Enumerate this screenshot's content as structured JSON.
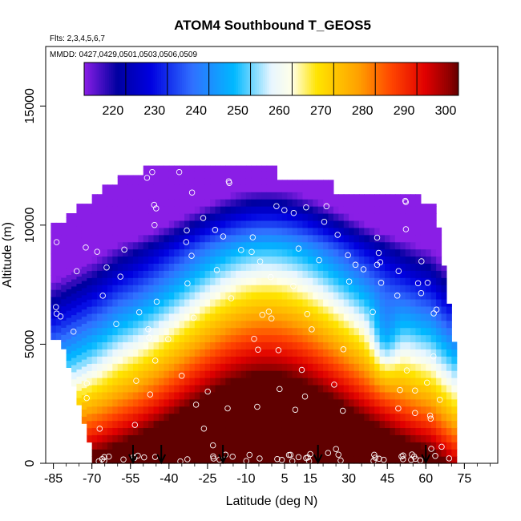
{
  "chart_data": {
    "type": "heatmap",
    "title": "ATOM4 Southbound T_GEOS5",
    "subtitle_flights": "Flts: 2,3,4,5,6,7",
    "subtitle_dates": "MMDD: 0427,0429,0501,0503,0506,0509",
    "xlabel": "Latitude (deg N)",
    "ylabel": "Altitude (m)",
    "xlim": [
      -88,
      88
    ],
    "ylim": [
      0,
      17500
    ],
    "xticks": [
      -85,
      -70,
      -55,
      -40,
      -25,
      -10,
      5,
      15,
      30,
      45,
      60,
      75
    ],
    "xtick_labels": [
      "-85",
      "-70",
      "-55",
      "-40",
      "-25",
      "-10",
      "5",
      "15",
      "30",
      "45",
      "60",
      "75"
    ],
    "yticks": [
      0,
      5000,
      10000,
      15000
    ],
    "ytick_labels": [
      "0",
      "5000",
      "10000",
      "15000"
    ],
    "colorbar": {
      "min": 210,
      "max": 300,
      "ticks": [
        220,
        230,
        240,
        250,
        260,
        270,
        280,
        290,
        300
      ],
      "tick_labels": [
        "220",
        "230",
        "240",
        "250",
        "260",
        "270",
        "280",
        "290",
        "300"
      ],
      "stops": [
        {
          "v": 210,
          "c": "#8a1ee6"
        },
        {
          "v": 218,
          "c": "#0000a0"
        },
        {
          "v": 226,
          "c": "#0000e0"
        },
        {
          "v": 236,
          "c": "#3070ff"
        },
        {
          "v": 246,
          "c": "#00b8ff"
        },
        {
          "v": 255,
          "c": "#e8f6ff"
        },
        {
          "v": 260,
          "c": "#ffffe8"
        },
        {
          "v": 266,
          "c": "#ffe400"
        },
        {
          "v": 276,
          "c": "#ffa000"
        },
        {
          "v": 284,
          "c": "#ff4400"
        },
        {
          "v": 292,
          "c": "#e00000"
        },
        {
          "v": 298,
          "c": "#8c0000"
        },
        {
          "v": 300,
          "c": "#600000"
        }
      ]
    },
    "profile_arrows_lat": [
      -54,
      -43,
      -19,
      18,
      60
    ],
    "colors": {
      "point_outline": "#ffffff",
      "arrow": "#000000",
      "axis": "#000000"
    }
  }
}
